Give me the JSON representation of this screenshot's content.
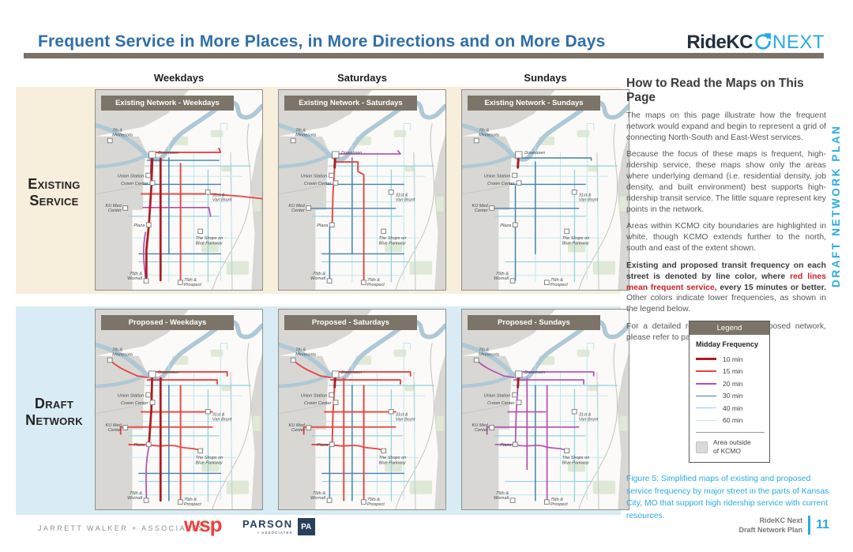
{
  "header": {
    "title": "Frequent Service in More Places, in More Directions and on More Days",
    "logo_ridekc": "RideKC",
    "logo_next": "NEXT",
    "vertical_label": "DRAFT NETWORK PLAN"
  },
  "columns": [
    "Weekdays",
    "Saturdays",
    "Sundays"
  ],
  "rows": [
    {
      "line1": "Existing",
      "line2": "Service"
    },
    {
      "line1": "Draft",
      "line2": "Network"
    }
  ],
  "maps": [
    {
      "header": "Existing Network - Weekdays",
      "variant": "existing_weekdays"
    },
    {
      "header": "Existing Network - Saturdays",
      "variant": "existing_saturdays"
    },
    {
      "header": "Existing Network - Sundays",
      "variant": "existing_sundays"
    },
    {
      "header": "Proposed - Weekdays",
      "variant": "proposed_weekdays"
    },
    {
      "header": "Proposed - Saturdays",
      "variant": "proposed_saturdays"
    },
    {
      "header": "Proposed - Sundays",
      "variant": "proposed_sundays"
    }
  ],
  "places": [
    {
      "id": "7th-minnesota",
      "lines": [
        "7th &",
        "Minnesota"
      ]
    },
    {
      "id": "downtown",
      "lines": [
        "Downtown"
      ]
    },
    {
      "id": "union-station",
      "lines": [
        "Union Station"
      ]
    },
    {
      "id": "crown-center",
      "lines": [
        "Crown Center"
      ]
    },
    {
      "id": "ku-med",
      "lines": [
        "KU Med",
        "Center"
      ]
    },
    {
      "id": "plaza",
      "lines": [
        "Plaza"
      ]
    },
    {
      "id": "31st-van-brunt",
      "lines": [
        "31st &",
        "Van Brunt"
      ]
    },
    {
      "id": "shops-blue-parkway",
      "lines": [
        "The Shops on",
        "Blue Parkway"
      ]
    },
    {
      "id": "75th-wornall",
      "lines": [
        "75th &",
        "Wornall"
      ]
    },
    {
      "id": "75th-prospect",
      "lines": [
        "75th &",
        "Prospect"
      ]
    }
  ],
  "howto": {
    "heading": "How to Read the Maps on This Page",
    "p1": "The maps on this page illustrate how the frequent network would expand and begin to represent a grid of connecting North-South and East-West services.",
    "p2": "Because the focus of these maps is frequent, high-ridership service, these maps show only the areas where underlying demand (i.e. residential density, job density, and built environment) best supports high-ridership transit service. The little square represent key points in the network.",
    "p3": "Areas within KCMO city boundaries are highlighted in white, though KCMO extends further to the north, south and east of the extent shown.",
    "p4_bold1": "Existing and proposed transit frequency on each street is denoted by line color, where ",
    "p4_red": "red lines mean frequent service,",
    "p4_bold2": " every 15 minutes or better.",
    "p4_rest": " Other colors indicate lower frequencies, as shown in the legend below.",
    "p5": "For a detailed route map of the proposed network, please refer to page 27."
  },
  "legend": {
    "title": "Legend",
    "subtitle": "Midday Frequency",
    "entries": [
      {
        "label": "10 min",
        "color": "#ae1c21",
        "weight": 3.5
      },
      {
        "label": "15 min",
        "color": "#e8433f",
        "weight": 2.5
      },
      {
        "label": "20 min",
        "color": "#b44db0",
        "weight": 2.2
      },
      {
        "label": "30 min",
        "color": "#4181ae",
        "weight": 1.8
      },
      {
        "label": "40 min",
        "color": "#8fd4de",
        "weight": 1.8
      },
      {
        "label": "60 min",
        "color": "#c2e7ee",
        "weight": 1.4
      }
    ],
    "area_label_lines": [
      "Area outside",
      "of KCMO"
    ]
  },
  "caption": "Figure 5: Simplified maps of existing and proposed service frequency by major street in the parts of Kansas City, MO that support high ridership service with current resources.",
  "footer": {
    "jwa": "JARRETT WALKER + ASSOCIATES",
    "wsp": "wsp",
    "parson": "PARSON",
    "parson_sub": "+ ASSOCIATES",
    "parson_badge": "PA",
    "ref_line1": "RideKC Next",
    "ref_line2": "Draft Network Plan",
    "page": "11"
  },
  "colors": {
    "title_blue": "#2f6fa8",
    "accent_cyan": "#29abe2",
    "rule_gray": "#7b7268",
    "map_header_gray": "#7c7468",
    "band_beige": "#f7efdc",
    "band_blue": "#d9ecf5",
    "navy": "#27405c",
    "wsp_red": "#f0413e",
    "f10": "#ae1c21",
    "f15": "#e8433f",
    "f20": "#b44db0",
    "f30": "#4181ae",
    "f40": "#8fd4de",
    "f60": "#c2e7ee"
  }
}
